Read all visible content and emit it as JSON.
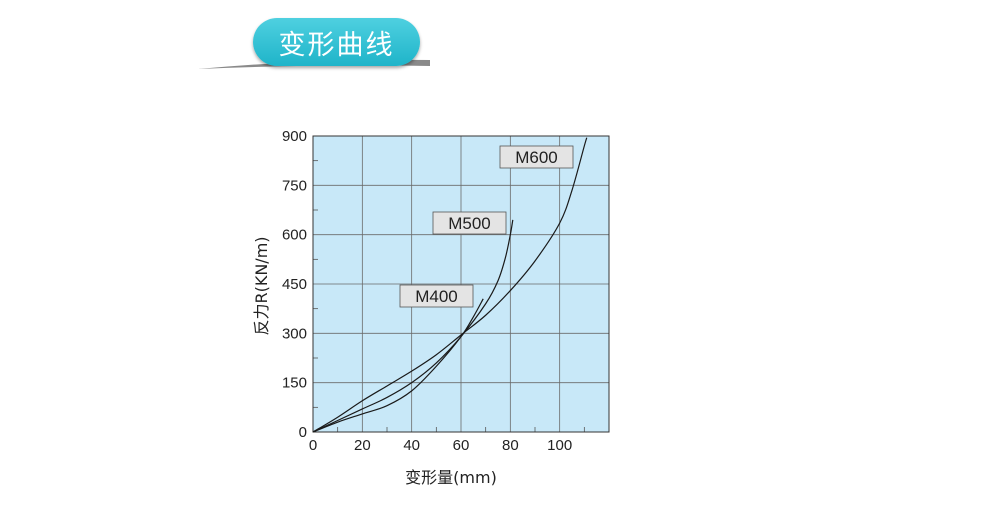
{
  "header": {
    "title": "变形曲线",
    "accent_color": "#27bcd0"
  },
  "chart_data": {
    "type": "line",
    "xlabel": "变形量(mm)",
    "ylabel": "反力R(KN/m)",
    "xlim": [
      0,
      120
    ],
    "ylim": [
      0,
      900
    ],
    "x_ticks": [
      0,
      20,
      40,
      60,
      80,
      100
    ],
    "y_ticks": [
      0,
      150,
      300,
      450,
      600,
      750,
      900
    ],
    "grid": true,
    "plot_background": "#c8e8f8",
    "series": [
      {
        "name": "M400",
        "points": [
          [
            0,
            0
          ],
          [
            10,
            30
          ],
          [
            20,
            55
          ],
          [
            30,
            80
          ],
          [
            40,
            125
          ],
          [
            50,
            200
          ],
          [
            60,
            290
          ],
          [
            65,
            350
          ],
          [
            69,
            405
          ]
        ]
      },
      {
        "name": "M500",
        "points": [
          [
            0,
            0
          ],
          [
            10,
            35
          ],
          [
            20,
            70
          ],
          [
            30,
            105
          ],
          [
            40,
            150
          ],
          [
            50,
            210
          ],
          [
            60,
            290
          ],
          [
            70,
            390
          ],
          [
            75,
            460
          ],
          [
            78,
            530
          ],
          [
            80,
            600
          ],
          [
            81,
            645
          ]
        ]
      },
      {
        "name": "M600",
        "points": [
          [
            0,
            0
          ],
          [
            10,
            45
          ],
          [
            20,
            95
          ],
          [
            30,
            140
          ],
          [
            40,
            185
          ],
          [
            50,
            235
          ],
          [
            60,
            295
          ],
          [
            70,
            355
          ],
          [
            80,
            430
          ],
          [
            90,
            520
          ],
          [
            100,
            635
          ],
          [
            105,
            735
          ],
          [
            110,
            870
          ],
          [
            111,
            895
          ]
        ]
      }
    ]
  }
}
